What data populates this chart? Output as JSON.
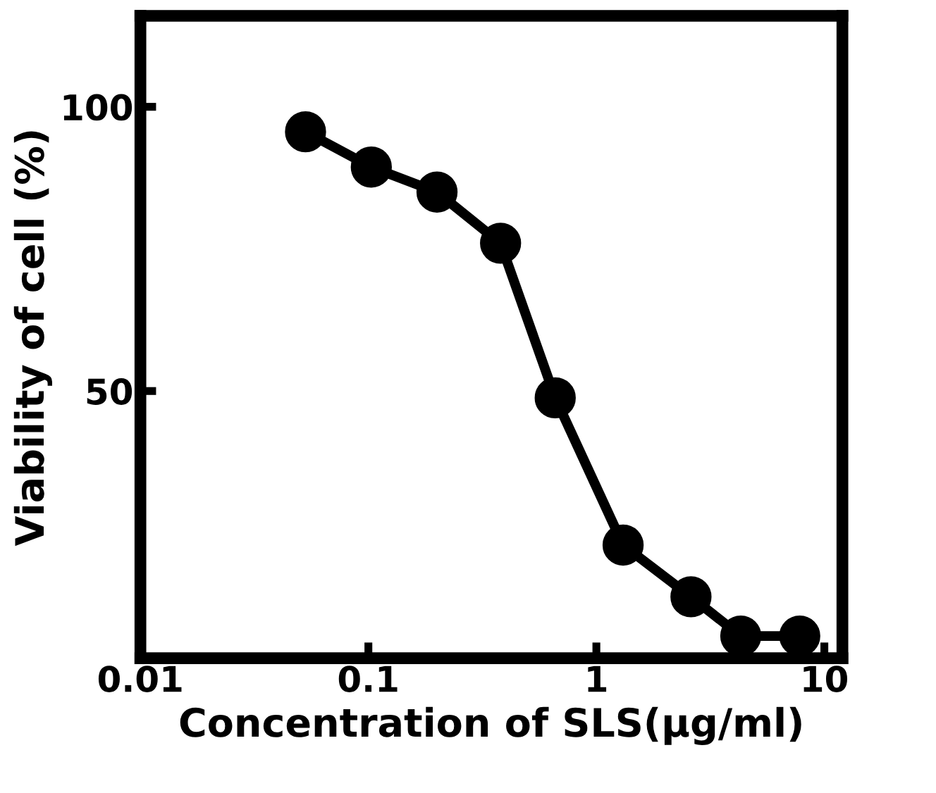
{
  "chart_data": {
    "type": "line",
    "xlabel": "Concentration of SLS(μg/ml)",
    "ylabel": "Viability of cell (%)",
    "x": [
      0.053,
      0.103,
      0.2,
      0.38,
      0.66,
      1.31,
      2.6,
      4.3,
      7.8
    ],
    "series": [
      {
        "color": "#000000",
        "values": [
          95.6,
          89.4,
          85,
          76,
          48.8,
          22.9,
          13.8,
          6.9,
          6.9
        ]
      }
    ],
    "log": "x",
    "xlim": [
      0.01,
      12
    ],
    "xticks": [
      0.01,
      0.1,
      1,
      10
    ],
    "ylim": [
      3,
      116
    ],
    "yticks": [
      50,
      100
    ],
    "grid": false,
    "legend": false,
    "marker": "circle",
    "line_style": "solid"
  }
}
